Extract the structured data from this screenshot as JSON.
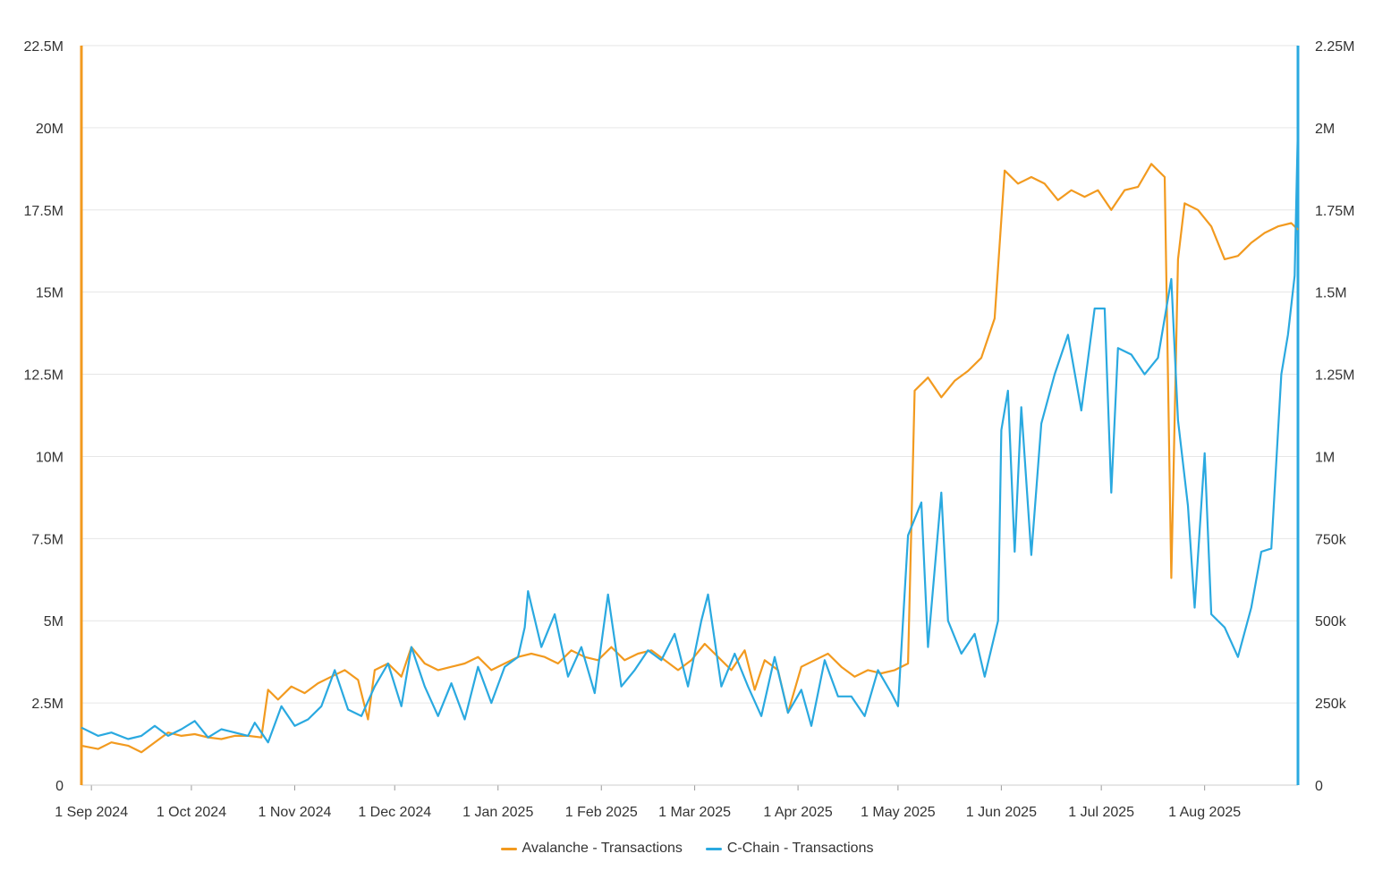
{
  "chart_data": {
    "type": "line",
    "colors": {
      "avalanche": "#f29a1f",
      "cchain": "#2aa9e0",
      "grid": "#e6e6e6",
      "text": "#333333"
    },
    "x_ticks": [
      "1 Sep 2024",
      "1 Oct 2024",
      "1 Nov 2024",
      "1 Dec 2024",
      "1 Jan 2025",
      "1 Feb 2025",
      "1 Mar 2025",
      "1 Apr 2025",
      "1 May 2025",
      "1 Jun 2025",
      "1 Jul 2025",
      "1 Aug 2025"
    ],
    "x_range": [
      "2024-08-29",
      "2025-08-29"
    ],
    "y_left": {
      "min": 0,
      "max": 22500000,
      "ticks": [
        0,
        2500000,
        5000000,
        7500000,
        10000000,
        12500000,
        15000000,
        17500000,
        20000000,
        22500000
      ],
      "tick_labels": [
        "0",
        "2.5M",
        "5M",
        "7.5M",
        "10M",
        "12.5M",
        "15M",
        "17.5M",
        "20M",
        "22.5M"
      ]
    },
    "y_right": {
      "min": 0,
      "max": 2250000,
      "ticks": [
        0,
        250000,
        500000,
        750000,
        1000000,
        1250000,
        1500000,
        1750000,
        2000000,
        2250000
      ],
      "tick_labels": [
        "0",
        "250k",
        "500k",
        "750k",
        "1M",
        "1.25M",
        "1.5M",
        "1.75M",
        "2M",
        "2.25M"
      ]
    },
    "grid": true,
    "legend_position": "bottom-center",
    "series": [
      {
        "name": "Avalanche - Transactions",
        "axis": "left",
        "points": [
          [
            "2024-08-29",
            1200000
          ],
          [
            "2024-09-03",
            1100000
          ],
          [
            "2024-09-07",
            1300000
          ],
          [
            "2024-09-12",
            1200000
          ],
          [
            "2024-09-16",
            1000000
          ],
          [
            "2024-09-20",
            1300000
          ],
          [
            "2024-09-24",
            1600000
          ],
          [
            "2024-09-28",
            1500000
          ],
          [
            "2024-10-02",
            1550000
          ],
          [
            "2024-10-06",
            1450000
          ],
          [
            "2024-10-10",
            1400000
          ],
          [
            "2024-10-14",
            1500000
          ],
          [
            "2024-10-18",
            1500000
          ],
          [
            "2024-10-22",
            1450000
          ],
          [
            "2024-10-24",
            2900000
          ],
          [
            "2024-10-27",
            2600000
          ],
          [
            "2024-10-31",
            3000000
          ],
          [
            "2024-11-04",
            2800000
          ],
          [
            "2024-11-08",
            3100000
          ],
          [
            "2024-11-12",
            3300000
          ],
          [
            "2024-11-16",
            3500000
          ],
          [
            "2024-11-20",
            3200000
          ],
          [
            "2024-11-23",
            2000000
          ],
          [
            "2024-11-25",
            3500000
          ],
          [
            "2024-11-29",
            3700000
          ],
          [
            "2024-12-03",
            3300000
          ],
          [
            "2024-12-06",
            4200000
          ],
          [
            "2024-12-10",
            3700000
          ],
          [
            "2024-12-14",
            3500000
          ],
          [
            "2024-12-18",
            3600000
          ],
          [
            "2024-12-22",
            3700000
          ],
          [
            "2024-12-26",
            3900000
          ],
          [
            "2024-12-30",
            3500000
          ],
          [
            "2025-01-03",
            3700000
          ],
          [
            "2025-01-07",
            3900000
          ],
          [
            "2025-01-11",
            4000000
          ],
          [
            "2025-01-15",
            3900000
          ],
          [
            "2025-01-19",
            3700000
          ],
          [
            "2025-01-23",
            4100000
          ],
          [
            "2025-01-27",
            3900000
          ],
          [
            "2025-01-31",
            3800000
          ],
          [
            "2025-02-04",
            4200000
          ],
          [
            "2025-02-08",
            3800000
          ],
          [
            "2025-02-12",
            4000000
          ],
          [
            "2025-02-16",
            4100000
          ],
          [
            "2025-02-20",
            3800000
          ],
          [
            "2025-02-24",
            3500000
          ],
          [
            "2025-02-28",
            3800000
          ],
          [
            "2025-03-04",
            4300000
          ],
          [
            "2025-03-08",
            3900000
          ],
          [
            "2025-03-12",
            3500000
          ],
          [
            "2025-03-16",
            4100000
          ],
          [
            "2025-03-19",
            2900000
          ],
          [
            "2025-03-22",
            3800000
          ],
          [
            "2025-03-26",
            3500000
          ],
          [
            "2025-03-29",
            2200000
          ],
          [
            "2025-04-02",
            3600000
          ],
          [
            "2025-04-06",
            3800000
          ],
          [
            "2025-04-10",
            4000000
          ],
          [
            "2025-04-14",
            3600000
          ],
          [
            "2025-04-18",
            3300000
          ],
          [
            "2025-04-22",
            3500000
          ],
          [
            "2025-04-26",
            3400000
          ],
          [
            "2025-04-30",
            3500000
          ],
          [
            "2025-05-04",
            3700000
          ],
          [
            "2025-05-06",
            12000000
          ],
          [
            "2025-05-10",
            12400000
          ],
          [
            "2025-05-14",
            11800000
          ],
          [
            "2025-05-18",
            12300000
          ],
          [
            "2025-05-22",
            12600000
          ],
          [
            "2025-05-26",
            13000000
          ],
          [
            "2025-05-30",
            14200000
          ],
          [
            "2025-06-02",
            18700000
          ],
          [
            "2025-06-06",
            18300000
          ],
          [
            "2025-06-10",
            18500000
          ],
          [
            "2025-06-14",
            18300000
          ],
          [
            "2025-06-18",
            17800000
          ],
          [
            "2025-06-22",
            18100000
          ],
          [
            "2025-06-26",
            17900000
          ],
          [
            "2025-06-30",
            18100000
          ],
          [
            "2025-07-04",
            17500000
          ],
          [
            "2025-07-08",
            18100000
          ],
          [
            "2025-07-12",
            18200000
          ],
          [
            "2025-07-16",
            18900000
          ],
          [
            "2025-07-20",
            18500000
          ],
          [
            "2025-07-22",
            6300000
          ],
          [
            "2025-07-24",
            16000000
          ],
          [
            "2025-07-26",
            17700000
          ],
          [
            "2025-07-30",
            17500000
          ],
          [
            "2025-08-03",
            17000000
          ],
          [
            "2025-08-07",
            16000000
          ],
          [
            "2025-08-11",
            16100000
          ],
          [
            "2025-08-15",
            16500000
          ],
          [
            "2025-08-19",
            16800000
          ],
          [
            "2025-08-23",
            17000000
          ],
          [
            "2025-08-27",
            17100000
          ],
          [
            "2025-08-29",
            16900000
          ]
        ]
      },
      {
        "name": "C-Chain - Transactions",
        "axis": "right",
        "points": [
          [
            "2024-08-29",
            175000
          ],
          [
            "2024-09-03",
            150000
          ],
          [
            "2024-09-07",
            160000
          ],
          [
            "2024-09-12",
            140000
          ],
          [
            "2024-09-16",
            150000
          ],
          [
            "2024-09-20",
            180000
          ],
          [
            "2024-09-24",
            150000
          ],
          [
            "2024-09-28",
            170000
          ],
          [
            "2024-10-02",
            195000
          ],
          [
            "2024-10-06",
            145000
          ],
          [
            "2024-10-10",
            170000
          ],
          [
            "2024-10-14",
            160000
          ],
          [
            "2024-10-18",
            150000
          ],
          [
            "2024-10-20",
            190000
          ],
          [
            "2024-10-24",
            130000
          ],
          [
            "2024-10-28",
            240000
          ],
          [
            "2024-11-01",
            180000
          ],
          [
            "2024-11-05",
            200000
          ],
          [
            "2024-11-09",
            240000
          ],
          [
            "2024-11-13",
            350000
          ],
          [
            "2024-11-17",
            230000
          ],
          [
            "2024-11-21",
            210000
          ],
          [
            "2024-11-25",
            300000
          ],
          [
            "2024-11-29",
            370000
          ],
          [
            "2024-12-03",
            240000
          ],
          [
            "2024-12-06",
            420000
          ],
          [
            "2024-12-10",
            300000
          ],
          [
            "2024-12-14",
            210000
          ],
          [
            "2024-12-18",
            310000
          ],
          [
            "2024-12-22",
            200000
          ],
          [
            "2024-12-26",
            360000
          ],
          [
            "2024-12-30",
            250000
          ],
          [
            "2025-01-03",
            360000
          ],
          [
            "2025-01-07",
            390000
          ],
          [
            "2025-01-09",
            480000
          ],
          [
            "2025-01-10",
            590000
          ],
          [
            "2025-01-14",
            420000
          ],
          [
            "2025-01-18",
            520000
          ],
          [
            "2025-01-22",
            330000
          ],
          [
            "2025-01-26",
            420000
          ],
          [
            "2025-01-30",
            280000
          ],
          [
            "2025-02-03",
            580000
          ],
          [
            "2025-02-07",
            300000
          ],
          [
            "2025-02-11",
            350000
          ],
          [
            "2025-02-15",
            410000
          ],
          [
            "2025-02-19",
            380000
          ],
          [
            "2025-02-23",
            460000
          ],
          [
            "2025-02-27",
            300000
          ],
          [
            "2025-03-03",
            500000
          ],
          [
            "2025-03-05",
            580000
          ],
          [
            "2025-03-09",
            300000
          ],
          [
            "2025-03-13",
            400000
          ],
          [
            "2025-03-17",
            300000
          ],
          [
            "2025-03-21",
            210000
          ],
          [
            "2025-03-25",
            390000
          ],
          [
            "2025-03-29",
            220000
          ],
          [
            "2025-04-02",
            290000
          ],
          [
            "2025-04-05",
            180000
          ],
          [
            "2025-04-09",
            380000
          ],
          [
            "2025-04-13",
            270000
          ],
          [
            "2025-04-17",
            270000
          ],
          [
            "2025-04-21",
            210000
          ],
          [
            "2025-04-25",
            350000
          ],
          [
            "2025-04-29",
            280000
          ],
          [
            "2025-05-01",
            240000
          ],
          [
            "2025-05-04",
            760000
          ],
          [
            "2025-05-08",
            860000
          ],
          [
            "2025-05-10",
            420000
          ],
          [
            "2025-05-14",
            890000
          ],
          [
            "2025-05-16",
            500000
          ],
          [
            "2025-05-20",
            400000
          ],
          [
            "2025-05-24",
            460000
          ],
          [
            "2025-05-27",
            330000
          ],
          [
            "2025-05-31",
            500000
          ],
          [
            "2025-06-01",
            1080000
          ],
          [
            "2025-06-03",
            1200000
          ],
          [
            "2025-06-05",
            710000
          ],
          [
            "2025-06-07",
            1150000
          ],
          [
            "2025-06-10",
            700000
          ],
          [
            "2025-06-13",
            1100000
          ],
          [
            "2025-06-17",
            1250000
          ],
          [
            "2025-06-21",
            1370000
          ],
          [
            "2025-06-25",
            1140000
          ],
          [
            "2025-06-29",
            1450000
          ],
          [
            "2025-07-02",
            1450000
          ],
          [
            "2025-07-04",
            890000
          ],
          [
            "2025-07-06",
            1330000
          ],
          [
            "2025-07-10",
            1310000
          ],
          [
            "2025-07-14",
            1250000
          ],
          [
            "2025-07-18",
            1300000
          ],
          [
            "2025-07-22",
            1540000
          ],
          [
            "2025-07-24",
            1110000
          ],
          [
            "2025-07-27",
            850000
          ],
          [
            "2025-07-29",
            540000
          ],
          [
            "2025-08-01",
            1010000
          ],
          [
            "2025-08-03",
            520000
          ],
          [
            "2025-08-07",
            480000
          ],
          [
            "2025-08-11",
            390000
          ],
          [
            "2025-08-15",
            540000
          ],
          [
            "2025-08-18",
            710000
          ],
          [
            "2025-08-21",
            720000
          ],
          [
            "2025-08-24",
            1250000
          ],
          [
            "2025-08-26",
            1370000
          ],
          [
            "2025-08-28",
            1550000
          ],
          [
            "2025-08-29",
            2010000
          ],
          [
            "2025-08-29",
            1720000
          ]
        ]
      }
    ]
  }
}
